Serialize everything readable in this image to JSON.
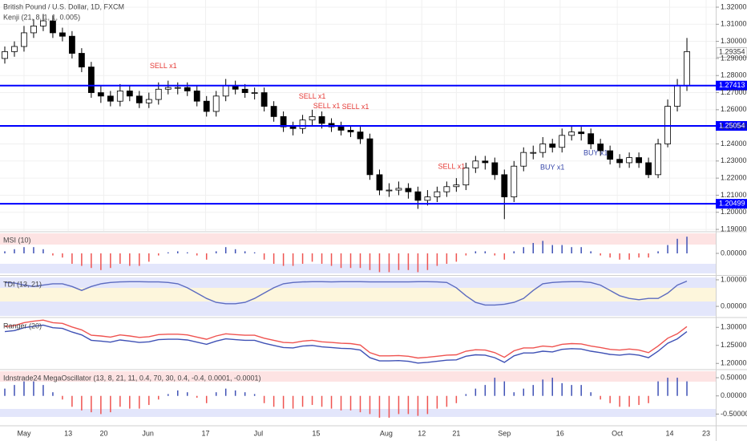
{
  "chart_data": [
    {
      "type": "candlestick",
      "title": "British Pound / U.S. Dollar, 1D, FXCM",
      "subtitle": "Kenji (21, 8, 1, 1, 0.005)",
      "open": [
        1.29,
        1.294,
        1.297,
        1.305,
        1.309,
        1.312,
        1.305,
        1.303,
        1.293,
        1.285,
        1.27,
        1.268,
        1.265,
        1.271,
        1.268,
        1.264,
        1.266,
        1.272,
        1.273,
        1.273,
        1.271,
        1.265,
        1.259,
        1.268,
        1.274,
        1.272,
        1.27,
        1.27,
        1.262,
        1.256,
        1.25,
        1.249,
        1.254,
        1.256,
        1.252,
        1.25,
        1.248,
        1.247,
        1.243,
        1.222,
        1.213,
        1.213,
        1.214,
        1.212,
        1.207,
        1.209,
        1.212,
        1.215,
        1.216,
        1.226,
        1.23,
        1.229,
        1.222,
        1.209,
        1.227,
        1.235,
        1.235,
        1.24,
        1.238,
        1.245,
        1.247,
        1.246,
        1.24,
        1.236,
        1.231,
        1.229,
        1.232,
        1.229,
        1.222,
        1.24,
        1.262,
        1.274
      ],
      "high": [
        1.297,
        1.3,
        1.309,
        1.313,
        1.316,
        1.315,
        1.308,
        1.306,
        1.296,
        1.288,
        1.274,
        1.271,
        1.275,
        1.274,
        1.271,
        1.27,
        1.276,
        1.277,
        1.276,
        1.276,
        1.274,
        1.268,
        1.271,
        1.278,
        1.277,
        1.275,
        1.273,
        1.273,
        1.265,
        1.259,
        1.253,
        1.257,
        1.26,
        1.259,
        1.255,
        1.253,
        1.251,
        1.25,
        1.246,
        1.225,
        1.217,
        1.218,
        1.217,
        1.215,
        1.213,
        1.215,
        1.218,
        1.22,
        1.229,
        1.233,
        1.233,
        1.232,
        1.225,
        1.23,
        1.238,
        1.239,
        1.244,
        1.243,
        1.249,
        1.251,
        1.25,
        1.249,
        1.243,
        1.239,
        1.234,
        1.235,
        1.235,
        1.232,
        1.243,
        1.266,
        1.278,
        1.302
      ],
      "low": [
        1.287,
        1.291,
        1.294,
        1.302,
        1.306,
        1.302,
        1.3,
        1.29,
        1.282,
        1.267,
        1.264,
        1.262,
        1.262,
        1.265,
        1.261,
        1.261,
        1.263,
        1.269,
        1.269,
        1.268,
        1.262,
        1.256,
        1.256,
        1.265,
        1.269,
        1.267,
        1.266,
        1.259,
        1.253,
        1.247,
        1.245,
        1.246,
        1.251,
        1.249,
        1.247,
        1.245,
        1.244,
        1.24,
        1.219,
        1.21,
        1.209,
        1.21,
        1.208,
        1.202,
        1.204,
        1.206,
        1.209,
        1.212,
        1.213,
        1.223,
        1.225,
        1.219,
        1.196,
        1.206,
        1.224,
        1.231,
        1.232,
        1.235,
        1.235,
        1.242,
        1.242,
        1.237,
        1.233,
        1.228,
        1.226,
        1.226,
        1.226,
        1.22,
        1.22,
        1.238,
        1.259,
        1.271
      ],
      "close": [
        1.294,
        1.297,
        1.305,
        1.309,
        1.312,
        1.305,
        1.303,
        1.293,
        1.285,
        1.27,
        1.268,
        1.265,
        1.271,
        1.268,
        1.264,
        1.266,
        1.272,
        1.273,
        1.273,
        1.271,
        1.265,
        1.259,
        1.268,
        1.274,
        1.272,
        1.27,
        1.27,
        1.262,
        1.256,
        1.25,
        1.249,
        1.254,
        1.256,
        1.252,
        1.25,
        1.248,
        1.247,
        1.243,
        1.222,
        1.213,
        1.213,
        1.214,
        1.212,
        1.207,
        1.209,
        1.212,
        1.215,
        1.216,
        1.226,
        1.23,
        1.229,
        1.222,
        1.209,
        1.227,
        1.235,
        1.235,
        1.24,
        1.238,
        1.245,
        1.247,
        1.246,
        1.24,
        1.236,
        1.231,
        1.229,
        1.232,
        1.229,
        1.222,
        1.24,
        1.262,
        1.274,
        1.294
      ],
      "up_color": "#ffffff",
      "down_color": "#000000",
      "outline_color": "#000000",
      "levels": [
        1.27413,
        1.25054,
        1.20499
      ],
      "level_color": "#0000ff",
      "last_price": 1.29354,
      "annotations": [
        {
          "text": "SELL x1",
          "x": 16.5,
          "y": 1.2855,
          "color": "#e53935"
        },
        {
          "text": "SELL x1",
          "x": 32,
          "y": 1.2675,
          "color": "#e53935"
        },
        {
          "text": "SELL x1",
          "x": 33.5,
          "y": 1.262,
          "color": "#e53935"
        },
        {
          "text": "SELL x1",
          "x": 36.5,
          "y": 1.2615,
          "color": "#e53935"
        },
        {
          "text": "SELL x1",
          "x": 46.5,
          "y": 1.2265,
          "color": "#e53935"
        },
        {
          "text": "BUY x1",
          "x": 57,
          "y": 1.226,
          "color": "#3949ab"
        },
        {
          "text": "BUY x1",
          "x": 61.5,
          "y": 1.2345,
          "color": "#3949ab"
        }
      ],
      "xlim": [
        -0.5,
        74
      ],
      "xticks": [
        {
          "value": 2,
          "label": "May"
        },
        {
          "value": 6.6,
          "label": "13"
        },
        {
          "value": 10.3,
          "label": "20"
        },
        {
          "value": 14.9,
          "label": "Jun"
        },
        {
          "value": 20.9,
          "label": "17"
        },
        {
          "value": 26.4,
          "label": "Jul"
        },
        {
          "value": 32.4,
          "label": "15"
        },
        {
          "value": 39.7,
          "label": "Aug"
        },
        {
          "value": 43.4,
          "label": "12"
        },
        {
          "value": 47,
          "label": "21"
        },
        {
          "value": 52,
          "label": "Sep"
        },
        {
          "value": 57.8,
          "label": "16"
        },
        {
          "value": 63.75,
          "label": "Oct"
        },
        {
          "value": 69.2,
          "label": "14"
        },
        {
          "value": 73,
          "label": "23"
        }
      ],
      "ylim": [
        1.1891,
        1.3242
      ],
      "yticks": [
        {
          "value": 1.19,
          "label": "1.19000"
        },
        {
          "value": 1.2,
          "label": "1.20000"
        },
        {
          "value": 1.21,
          "label": "1.21000"
        },
        {
          "value": 1.22,
          "label": "1.22000"
        },
        {
          "value": 1.23,
          "label": "1.23000"
        },
        {
          "value": 1.24,
          "label": "1.24000"
        },
        {
          "value": 1.25,
          "label": "1.25000"
        },
        {
          "value": 1.26,
          "label": "1.26000"
        },
        {
          "value": 1.27,
          "label": "1.27000"
        },
        {
          "value": 1.28,
          "label": "1.28000"
        },
        {
          "value": 1.29,
          "label": "1.29000"
        },
        {
          "value": 1.3,
          "label": "1.30000"
        },
        {
          "value": 1.31,
          "label": "1.31000"
        },
        {
          "value": 1.32,
          "label": "1.32000"
        }
      ],
      "grid": true
    },
    {
      "type": "bar",
      "title": "MSI (10)",
      "color_positive": "#3f51b5",
      "color_negative": "#ef5350",
      "values": [
        0.1,
        0.2,
        0.3,
        0.3,
        0.2,
        -0.1,
        -0.2,
        -0.5,
        -0.6,
        -0.7,
        -0.8,
        -0.7,
        -0.5,
        -0.6,
        -0.6,
        -0.4,
        -0.1,
        0.05,
        0.1,
        0.05,
        -0.1,
        -0.3,
        0.1,
        0.3,
        0.2,
        0.1,
        0.05,
        -0.3,
        -0.5,
        -0.6,
        -0.6,
        -0.5,
        -0.4,
        -0.5,
        -0.6,
        -0.7,
        -0.7,
        -0.7,
        -0.8,
        -0.9,
        -0.9,
        -0.8,
        -0.8,
        -0.9,
        -0.8,
        -0.6,
        -0.5,
        -0.4,
        -0.1,
        0.1,
        0.1,
        -0.1,
        -0.3,
        0.1,
        0.3,
        0.5,
        0.6,
        0.4,
        0.4,
        0.3,
        0.3,
        0.1,
        -0.1,
        -0.2,
        -0.3,
        -0.3,
        -0.2,
        -0.2,
        0.1,
        0.4,
        0.7,
        0.8
      ],
      "ylim": [
        -1,
        1
      ],
      "yticks": [
        {
          "value": 0,
          "label": "0.00000"
        }
      ]
    },
    {
      "type": "line",
      "title": "TDI (13, 21)",
      "color": "#5c6bc0",
      "values": [
        0.9,
        0.88,
        0.8,
        0.75,
        0.8,
        0.85,
        0.85,
        0.75,
        0.6,
        0.75,
        0.85,
        0.9,
        0.92,
        0.93,
        0.93,
        0.92,
        0.92,
        0.9,
        0.85,
        0.7,
        0.5,
        0.3,
        0.15,
        0.1,
        0.1,
        0.15,
        0.3,
        0.5,
        0.7,
        0.85,
        0.9,
        0.92,
        0.93,
        0.93,
        0.92,
        0.93,
        0.93,
        0.93,
        0.92,
        0.92,
        0.92,
        0.92,
        0.92,
        0.93,
        0.93,
        0.92,
        0.9,
        0.7,
        0.4,
        0.15,
        0.05,
        0.05,
        0.08,
        0.15,
        0.3,
        0.6,
        0.85,
        0.9,
        0.92,
        0.93,
        0.93,
        0.9,
        0.8,
        0.6,
        0.4,
        0.3,
        0.25,
        0.3,
        0.3,
        0.5,
        0.8,
        0.95
      ],
      "ylim": [
        -0.39,
        1.12
      ],
      "yticks": [
        {
          "value": 0,
          "label": "0.00000"
        },
        {
          "value": 1,
          "label": "1.00000"
        }
      ]
    },
    {
      "type": "line",
      "title": "Ranger (20)",
      "series": [
        {
          "color": "#ef5350",
          "values": [
            1.302,
            1.305,
            1.313,
            1.317,
            1.32,
            1.313,
            1.311,
            1.301,
            1.293,
            1.278,
            1.276,
            1.273,
            1.279,
            1.276,
            1.272,
            1.274,
            1.28,
            1.281,
            1.281,
            1.279,
            1.273,
            1.267,
            1.276,
            1.282,
            1.28,
            1.278,
            1.278,
            1.27,
            1.264,
            1.258,
            1.257,
            1.262,
            1.264,
            1.26,
            1.258,
            1.256,
            1.255,
            1.251,
            1.23,
            1.221,
            1.221,
            1.222,
            1.22,
            1.215,
            1.217,
            1.22,
            1.223,
            1.224,
            1.234,
            1.238,
            1.237,
            1.23,
            1.217,
            1.235,
            1.243,
            1.243,
            1.248,
            1.246,
            1.253,
            1.255,
            1.254,
            1.248,
            1.244,
            1.239,
            1.237,
            1.24,
            1.237,
            1.23,
            1.248,
            1.27,
            1.282,
            1.302
          ]
        },
        {
          "color": "#3f51b5",
          "values": [
            1.288,
            1.291,
            1.299,
            1.303,
            1.306,
            1.299,
            1.297,
            1.287,
            1.279,
            1.264,
            1.262,
            1.259,
            1.265,
            1.262,
            1.258,
            1.26,
            1.266,
            1.267,
            1.267,
            1.265,
            1.259,
            1.253,
            1.262,
            1.268,
            1.266,
            1.264,
            1.264,
            1.256,
            1.25,
            1.244,
            1.243,
            1.248,
            1.25,
            1.246,
            1.244,
            1.242,
            1.241,
            1.237,
            1.216,
            1.207,
            1.207,
            1.208,
            1.206,
            1.201,
            1.203,
            1.206,
            1.209,
            1.21,
            1.22,
            1.224,
            1.223,
            1.216,
            1.203,
            1.221,
            1.229,
            1.229,
            1.234,
            1.232,
            1.239,
            1.241,
            1.24,
            1.234,
            1.23,
            1.225,
            1.223,
            1.226,
            1.223,
            1.216,
            1.234,
            1.256,
            1.268,
            1.288
          ]
        }
      ],
      "ylim": [
        1.185,
        1.325
      ],
      "yticks": [
        {
          "value": 1.2,
          "label": "1.20000"
        },
        {
          "value": 1.25,
          "label": "1.25000"
        },
        {
          "value": 1.3,
          "label": "1.30000"
        }
      ]
    },
    {
      "type": "bar",
      "title": "Idnstrade24 MegaOscillator (13, 8, 21, 11, 0.4, 70, 30, 0.4, -0.4, 0.0001, -0.0001)",
      "color_positive": "#3f51b5",
      "color_negative": "#ef5350",
      "values": [
        0.2,
        0.3,
        0.4,
        0.4,
        0.3,
        0.1,
        -0.1,
        -0.3,
        -0.4,
        -0.45,
        -0.5,
        -0.45,
        -0.3,
        -0.35,
        -0.35,
        -0.25,
        -0.1,
        0.05,
        0.15,
        0.1,
        -0.05,
        -0.2,
        0.1,
        0.2,
        0.15,
        0.1,
        0.05,
        -0.2,
        -0.3,
        -0.35,
        -0.35,
        -0.3,
        -0.25,
        -0.3,
        -0.35,
        -0.4,
        -0.4,
        -0.45,
        -0.5,
        -0.6,
        -0.6,
        -0.5,
        -0.5,
        -0.55,
        -0.5,
        -0.35,
        -0.3,
        -0.2,
        0.05,
        0.2,
        0.3,
        0.5,
        0.4,
        0.1,
        0.2,
        0.3,
        0.45,
        0.5,
        0.35,
        0.3,
        0.3,
        0.1,
        -0.1,
        -0.2,
        -0.3,
        -0.3,
        -0.25,
        -0.2,
        0.4,
        0.5,
        0.5,
        0.4
      ],
      "ylim": [
        -0.8,
        0.7
      ],
      "yticks": [
        {
          "value": -0.5,
          "label": "-0.50000"
        },
        {
          "value": 0,
          "label": "0.00000"
        },
        {
          "value": 0.5,
          "label": "0.50000"
        }
      ]
    }
  ]
}
